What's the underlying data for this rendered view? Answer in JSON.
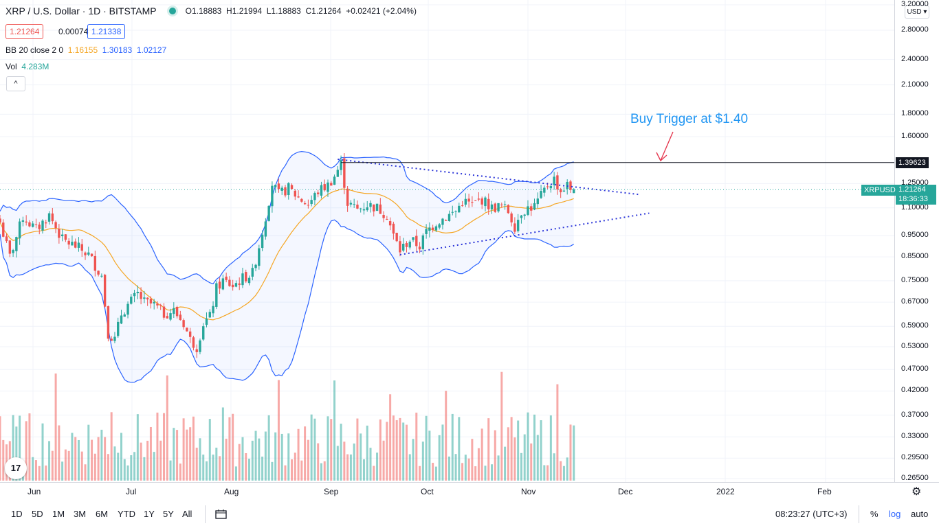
{
  "header": {
    "symbol": "XRP / U.S. Dollar · 1D · BITSTAMP",
    "open": "O1.18883",
    "high": "H1.21994",
    "low": "L1.18883",
    "close": "C1.21264",
    "change": "+0.02421 (+2.04%)"
  },
  "quote": {
    "bid": "1.21264",
    "spread": "0.00074",
    "ask": "1.21338"
  },
  "indicators": {
    "bb_name": "BB 20 close 2 0",
    "bb_mid": "1.16155",
    "bb_upper": "1.30183",
    "bb_lower": "1.02127",
    "vol_name": "Vol",
    "vol_value": "4.283M",
    "collapse_icon": "^"
  },
  "price_axis": {
    "currency": "USD",
    "labels": [
      "3.20000",
      "2.80000",
      "2.40000",
      "2.10000",
      "1.80000",
      "1.60000",
      "1.25000",
      "1.10000",
      "0.95000",
      "0.85000",
      "0.75000",
      "0.67000",
      "0.59000",
      "0.53000",
      "0.47000",
      "0.42000",
      "0.37000",
      "0.33000",
      "0.29500",
      "0.26500"
    ],
    "values": [
      3.2,
      2.8,
      2.4,
      2.1,
      1.8,
      1.6,
      1.25,
      1.1,
      0.95,
      0.85,
      0.75,
      0.67,
      0.59,
      0.53,
      0.47,
      0.42,
      0.37,
      0.33,
      0.295,
      0.265
    ],
    "scale": "log",
    "level_tag": "1.39623",
    "symbol_tag": "XRPUSD",
    "last_price_tag": "1.21264",
    "countdown_tag": "18:36:33",
    "colors": {
      "level": "#131722",
      "symbol": "#26a69a",
      "price": "#26a69a",
      "up": "#26a69a",
      "down": "#ef5350",
      "bb_band": "#2962ff",
      "bb_mid": "#f5a623",
      "trendline": "#2b35d8",
      "annotation": "#2196f3",
      "arrow": "#e53950"
    }
  },
  "time_axis": {
    "labels": [
      "Jun",
      "Jul",
      "Aug",
      "Sep",
      "Oct",
      "Nov",
      "Dec",
      "2022",
      "Feb"
    ]
  },
  "annotation": {
    "text": "Buy Trigger at $1.40",
    "level": 1.39623
  },
  "toolbar": {
    "ranges": [
      "1D",
      "5D",
      "1M",
      "3M",
      "6M",
      "YTD",
      "1Y",
      "5Y",
      "All"
    ],
    "time": "08:23:27 (UTC+3)",
    "pct": "%",
    "log": "log",
    "auto": "auto",
    "logo": "17"
  },
  "chart_data": {
    "type": "candlestick",
    "title": "XRP / U.S. Dollar · 1D · BITSTAMP",
    "y_scale": "log",
    "ylim": [
      0.26,
      3.3
    ],
    "x_range": [
      "2021-05-23",
      "2022-02-28"
    ],
    "candles_summary": [
      {
        "period": "late May",
        "approx_close": 1.0
      },
      {
        "period": "mid Jun",
        "approx_low": 0.52
      },
      {
        "period": "late Jul",
        "approx_low": 0.52
      },
      {
        "period": "mid Aug",
        "approx_close": 1.25
      },
      {
        "period": "early Sep",
        "approx_high": 1.4
      },
      {
        "period": "late Sep",
        "approx_low": 0.86
      },
      {
        "period": "early Nov",
        "approx_high": 1.35
      },
      {
        "period": "mid Nov (last)",
        "open": 1.18883,
        "high": 1.21994,
        "low": 1.18883,
        "close": 1.21264
      }
    ],
    "horizontal_level": 1.39623,
    "bollinger": {
      "period": 20,
      "last_mid": 1.16155,
      "last_upper": 1.30183,
      "last_lower": 1.02127
    },
    "volume_last": "4.283M"
  }
}
